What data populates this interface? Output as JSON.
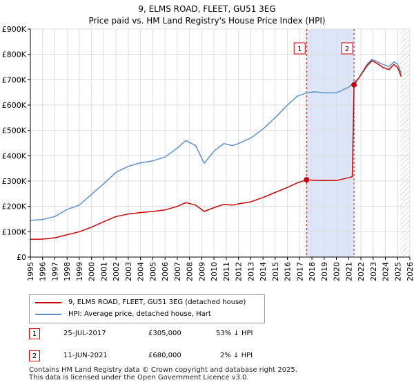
{
  "colors": {
    "property": "#cc0000",
    "hpi": "#5b8fd0",
    "shade": "#dde6f8",
    "grid": "#dddddd",
    "marker_line": "#cc0000"
  },
  "chart_data": {
    "type": "line",
    "title": "9, ELMS ROAD, FLEET, GU51 3EG",
    "subtitle": "Price paid vs. HM Land Registry's House Price Index (HPI)",
    "xlabel": "",
    "ylabel": "",
    "xlim": [
      1995,
      2026
    ],
    "ylim": [
      0,
      900000
    ],
    "y_ticks": [
      {
        "value": 0,
        "label": "£0"
      },
      {
        "value": 100000,
        "label": "£100K"
      },
      {
        "value": 200000,
        "label": "£200K"
      },
      {
        "value": 300000,
        "label": "£300K"
      },
      {
        "value": 400000,
        "label": "£400K"
      },
      {
        "value": 500000,
        "label": "£500K"
      },
      {
        "value": 600000,
        "label": "£600K"
      },
      {
        "value": 700000,
        "label": "£700K"
      },
      {
        "value": 800000,
        "label": "£800K"
      },
      {
        "value": 900000,
        "label": "£900K"
      }
    ],
    "x_ticks": [
      "1995",
      "1996",
      "1997",
      "1998",
      "1999",
      "2000",
      "2001",
      "2002",
      "2003",
      "2004",
      "2005",
      "2006",
      "2007",
      "2008",
      "2009",
      "2010",
      "2011",
      "2012",
      "2013",
      "2014",
      "2015",
      "2016",
      "2017",
      "2018",
      "2019",
      "2020",
      "2021",
      "2022",
      "2023",
      "2024",
      "2025",
      "2026"
    ],
    "shaded_region": [
      2017.56,
      2021.44
    ],
    "future_hatch_from": 2025.2,
    "series": [
      {
        "name": "9, ELMS ROAD, FLEET, GU51 3EG (detached house)",
        "points": [
          [
            1995.0,
            70000
          ],
          [
            1996.0,
            71000
          ],
          [
            1997.0,
            76000
          ],
          [
            1998.0,
            88000
          ],
          [
            1999.0,
            100000
          ],
          [
            2000.0,
            118000
          ],
          [
            2001.0,
            140000
          ],
          [
            2002.0,
            160000
          ],
          [
            2003.0,
            170000
          ],
          [
            2004.0,
            176000
          ],
          [
            2005.0,
            180000
          ],
          [
            2006.0,
            186000
          ],
          [
            2007.0,
            200000
          ],
          [
            2007.7,
            215000
          ],
          [
            2008.5,
            205000
          ],
          [
            2009.2,
            180000
          ],
          [
            2010.0,
            195000
          ],
          [
            2010.8,
            208000
          ],
          [
            2011.5,
            205000
          ],
          [
            2012.0,
            210000
          ],
          [
            2013.0,
            218000
          ],
          [
            2014.0,
            235000
          ],
          [
            2015.0,
            255000
          ],
          [
            2016.0,
            275000
          ],
          [
            2016.8,
            293000
          ],
          [
            2017.56,
            305000
          ],
          [
            2018.2,
            303000
          ],
          [
            2019.0,
            302000
          ],
          [
            2020.0,
            302000
          ],
          [
            2021.0,
            313000
          ],
          [
            2021.3,
            318000
          ],
          [
            2021.44,
            680000
          ],
          [
            2021.8,
            705000
          ],
          [
            2022.5,
            755000
          ],
          [
            2022.9,
            775000
          ],
          [
            2023.3,
            765000
          ],
          [
            2023.8,
            748000
          ],
          [
            2024.3,
            740000
          ],
          [
            2024.7,
            760000
          ],
          [
            2025.0,
            748000
          ],
          [
            2025.3,
            712000
          ]
        ]
      },
      {
        "name": "HPI: Average price, detached house, Hart",
        "points": [
          [
            1995.0,
            145000
          ],
          [
            1996.0,
            148000
          ],
          [
            1997.0,
            160000
          ],
          [
            1998.0,
            188000
          ],
          [
            1999.0,
            205000
          ],
          [
            2000.0,
            248000
          ],
          [
            2001.0,
            290000
          ],
          [
            2002.0,
            335000
          ],
          [
            2003.0,
            358000
          ],
          [
            2004.0,
            372000
          ],
          [
            2005.0,
            380000
          ],
          [
            2006.0,
            395000
          ],
          [
            2007.0,
            430000
          ],
          [
            2007.7,
            460000
          ],
          [
            2008.5,
            440000
          ],
          [
            2009.2,
            370000
          ],
          [
            2010.0,
            418000
          ],
          [
            2010.8,
            448000
          ],
          [
            2011.5,
            440000
          ],
          [
            2012.0,
            448000
          ],
          [
            2013.0,
            470000
          ],
          [
            2014.0,
            505000
          ],
          [
            2015.0,
            550000
          ],
          [
            2016.0,
            600000
          ],
          [
            2016.8,
            635000
          ],
          [
            2017.56,
            648000
          ],
          [
            2018.2,
            652000
          ],
          [
            2019.0,
            648000
          ],
          [
            2020.0,
            648000
          ],
          [
            2021.0,
            670000
          ],
          [
            2021.44,
            688000
          ],
          [
            2021.8,
            705000
          ],
          [
            2022.5,
            760000
          ],
          [
            2022.9,
            780000
          ],
          [
            2023.3,
            772000
          ],
          [
            2023.8,
            760000
          ],
          [
            2024.3,
            752000
          ],
          [
            2024.7,
            770000
          ],
          [
            2025.0,
            762000
          ],
          [
            2025.3,
            725000
          ]
        ]
      }
    ],
    "sales": [
      {
        "num": "1",
        "x": 2017.56,
        "value": 305000
      },
      {
        "num": "2",
        "x": 2021.44,
        "value": 680000
      }
    ]
  },
  "legend": {
    "property_label": "9, ELMS ROAD, FLEET, GU51 3EG (detached house)",
    "hpi_label": "HPI: Average price, detached house, Hart"
  },
  "annotations": [
    {
      "num": "1",
      "date": "25-JUL-2017",
      "price": "£305,000",
      "hpi_diff": "53% ↓ HPI"
    },
    {
      "num": "2",
      "date": "11-JUN-2021",
      "price": "£680,000",
      "hpi_diff": "2% ↓ HPI"
    }
  ],
  "footer": {
    "line1": "Contains HM Land Registry data © Crown copyright and database right 2025.",
    "line2": "This data is licensed under the Open Government Licence v3.0."
  }
}
